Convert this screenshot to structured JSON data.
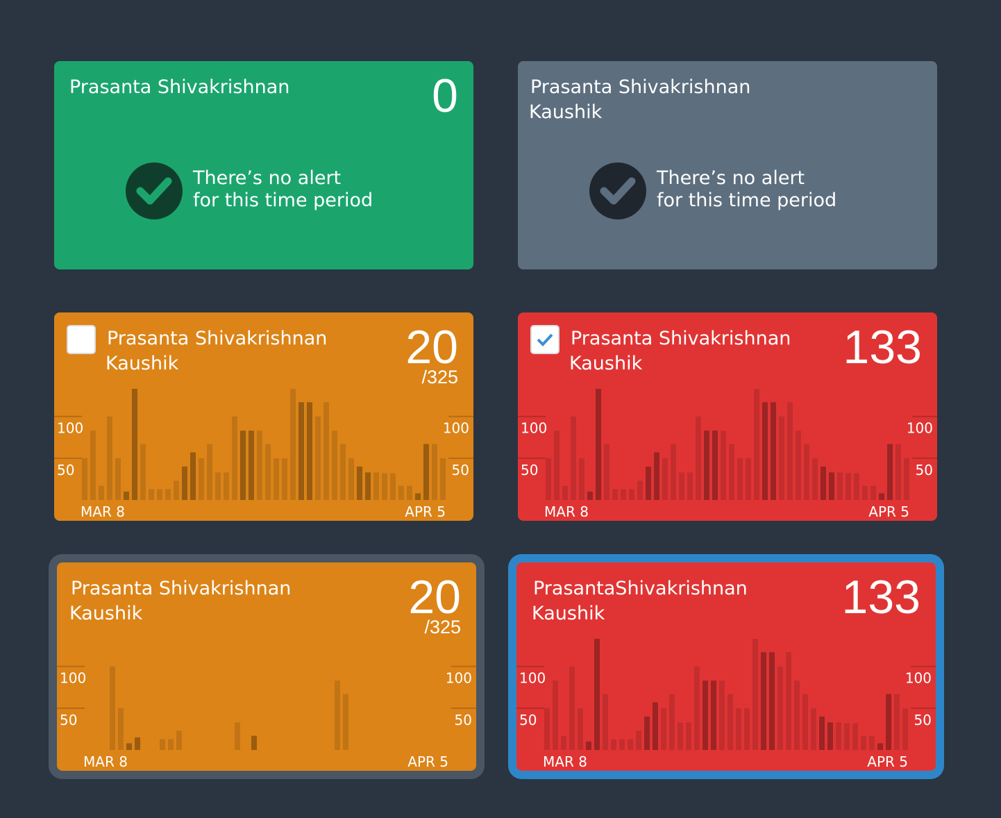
{
  "cards": [
    {
      "color": "#1ba56d",
      "title": [
        "Prasanta Shivakrishnan"
      ],
      "count": 0,
      "message": [
        "There’s no alert",
        "for this time period"
      ],
      "icon_color": "#0f3f2c"
    },
    {
      "color": "#5d6e7e",
      "title": [
        "Prasanta Shivakrishnan",
        "Kaushik"
      ],
      "message": [
        "There’s no alert",
        "for this time period"
      ],
      "icon_color": "#1f262e"
    },
    {
      "color": "#dc8418",
      "checkbox": "unchecked",
      "title": [
        "Prasanta Shivakrishnan",
        "Kaushik"
      ],
      "count": 20,
      "total": "/325",
      "chart": {
        "values": [
          50,
          83,
          17,
          100,
          50,
          10,
          133,
          67,
          13,
          13,
          13,
          23,
          40,
          57,
          50,
          67,
          33,
          33,
          100,
          83,
          83,
          83,
          67,
          50,
          50,
          133,
          117,
          117,
          100,
          117,
          83,
          67,
          50,
          40,
          33,
          33,
          32,
          32,
          17,
          17,
          8,
          67,
          67,
          50
        ],
        "highlighted": [
          5,
          6,
          12,
          13,
          19,
          20,
          26,
          27,
          33,
          34,
          40,
          41
        ],
        "ylim": [
          0,
          133
        ],
        "yticks": [
          50,
          100
        ],
        "x_labels": [
          "MAR 8",
          "APR 5"
        ]
      }
    },
    {
      "color": "#e03434",
      "checkbox": "checked",
      "title": [
        "Prasanta Shivakrishnan",
        "Kaushik"
      ],
      "count": 133,
      "chart": {
        "values": [
          50,
          83,
          17,
          100,
          50,
          10,
          133,
          67,
          13,
          13,
          13,
          23,
          40,
          57,
          50,
          67,
          33,
          33,
          100,
          83,
          83,
          83,
          67,
          50,
          50,
          133,
          117,
          117,
          100,
          117,
          83,
          67,
          50,
          40,
          33,
          33,
          32,
          32,
          17,
          17,
          8,
          67,
          67,
          50
        ],
        "highlighted": [
          5,
          6,
          12,
          13,
          19,
          20,
          26,
          27,
          33,
          34,
          40,
          41
        ],
        "ylim": [
          0,
          133
        ],
        "yticks": [
          50,
          100
        ],
        "x_labels": [
          "MAR 8",
          "APR 5"
        ]
      }
    },
    {
      "color": "#dc8418",
      "border": "#4a5663",
      "title": [
        "Prasanta Shivakrishnan",
        "Kaushik"
      ],
      "count": 20,
      "total": "/325",
      "chart": {
        "values": [
          0,
          0,
          0,
          100,
          50,
          8,
          15,
          0,
          0,
          13,
          13,
          23,
          0,
          0,
          0,
          0,
          0,
          0,
          33,
          0,
          17,
          0,
          0,
          0,
          0,
          0,
          0,
          0,
          0,
          0,
          83,
          67,
          0,
          0,
          0,
          0,
          0,
          0,
          0,
          0,
          0,
          0,
          0,
          0
        ],
        "highlighted": [
          5,
          6,
          12,
          13,
          19,
          20,
          26,
          27,
          33,
          34,
          40,
          41
        ],
        "ylim": [
          0,
          133
        ],
        "yticks": [
          50,
          100
        ],
        "x_labels": [
          "MAR 8",
          "APR 5"
        ]
      }
    },
    {
      "color": "#e03434",
      "border": "#2e86c8",
      "title": [
        "PrasantaShivakrishnan",
        "Kaushik"
      ],
      "count": 133,
      "chart": {
        "values": [
          50,
          83,
          17,
          100,
          50,
          10,
          133,
          67,
          13,
          13,
          13,
          23,
          40,
          57,
          50,
          67,
          33,
          33,
          100,
          83,
          83,
          83,
          67,
          50,
          50,
          133,
          117,
          117,
          100,
          117,
          83,
          67,
          50,
          40,
          33,
          33,
          32,
          32,
          17,
          17,
          8,
          67,
          67,
          50
        ],
        "highlighted": [
          5,
          6,
          12,
          13,
          19,
          20,
          26,
          27,
          33,
          34,
          40,
          41
        ],
        "ylim": [
          0,
          133
        ],
        "yticks": [
          50,
          100
        ],
        "x_labels": [
          "MAR 8",
          "APR 5"
        ]
      }
    }
  ]
}
